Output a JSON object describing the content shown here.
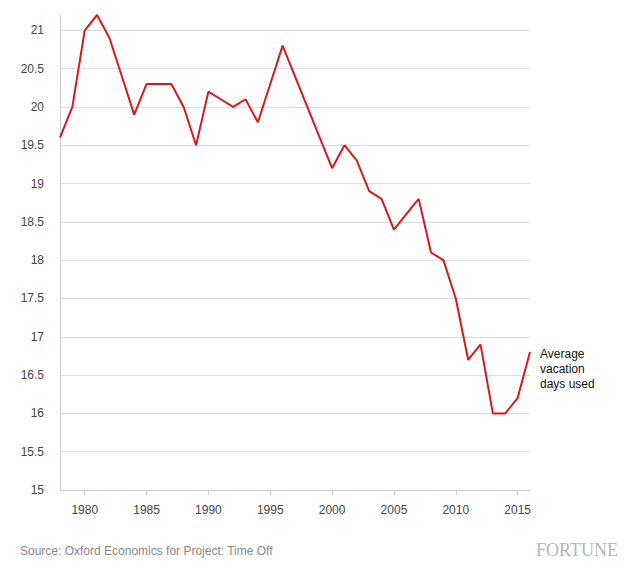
{
  "chart_data": {
    "type": "line",
    "annotation": "Average vacation days used",
    "source": "Source: Oxford Economics for Project: Time Off",
    "branding": "FORTUNE",
    "x": [
      1978,
      1979,
      1980,
      1981,
      1982,
      1983,
      1984,
      1985,
      1986,
      1987,
      1988,
      1989,
      1990,
      1991,
      1992,
      1993,
      1994,
      1995,
      1996,
      1997,
      1998,
      1999,
      2000,
      2001,
      2002,
      2003,
      2004,
      2005,
      2006,
      2007,
      2008,
      2009,
      2010,
      2011,
      2012,
      2013,
      2014,
      2015,
      2016
    ],
    "values": [
      19.6,
      20.0,
      21.0,
      21.2,
      20.9,
      20.4,
      19.9,
      20.3,
      20.3,
      20.3,
      20.0,
      19.5,
      20.2,
      20.1,
      20.0,
      20.1,
      19.8,
      20.3,
      20.8,
      20.4,
      20.0,
      19.6,
      19.2,
      19.5,
      19.3,
      18.9,
      18.8,
      18.4,
      18.6,
      18.8,
      18.1,
      18.0,
      17.5,
      16.7,
      16.9,
      16.0,
      16.0,
      16.2,
      16.8
    ],
    "color": "#d7191c",
    "xlim": [
      1978,
      2016
    ],
    "xticks": [
      1980,
      1985,
      1990,
      1995,
      2000,
      2005,
      2010,
      2015
    ],
    "ylim": [
      15,
      21.2
    ],
    "yticks": [
      15,
      15.5,
      16,
      16.5,
      17,
      17.5,
      18,
      18.5,
      19,
      19.5,
      20,
      20.5,
      21
    ],
    "grid": true
  }
}
